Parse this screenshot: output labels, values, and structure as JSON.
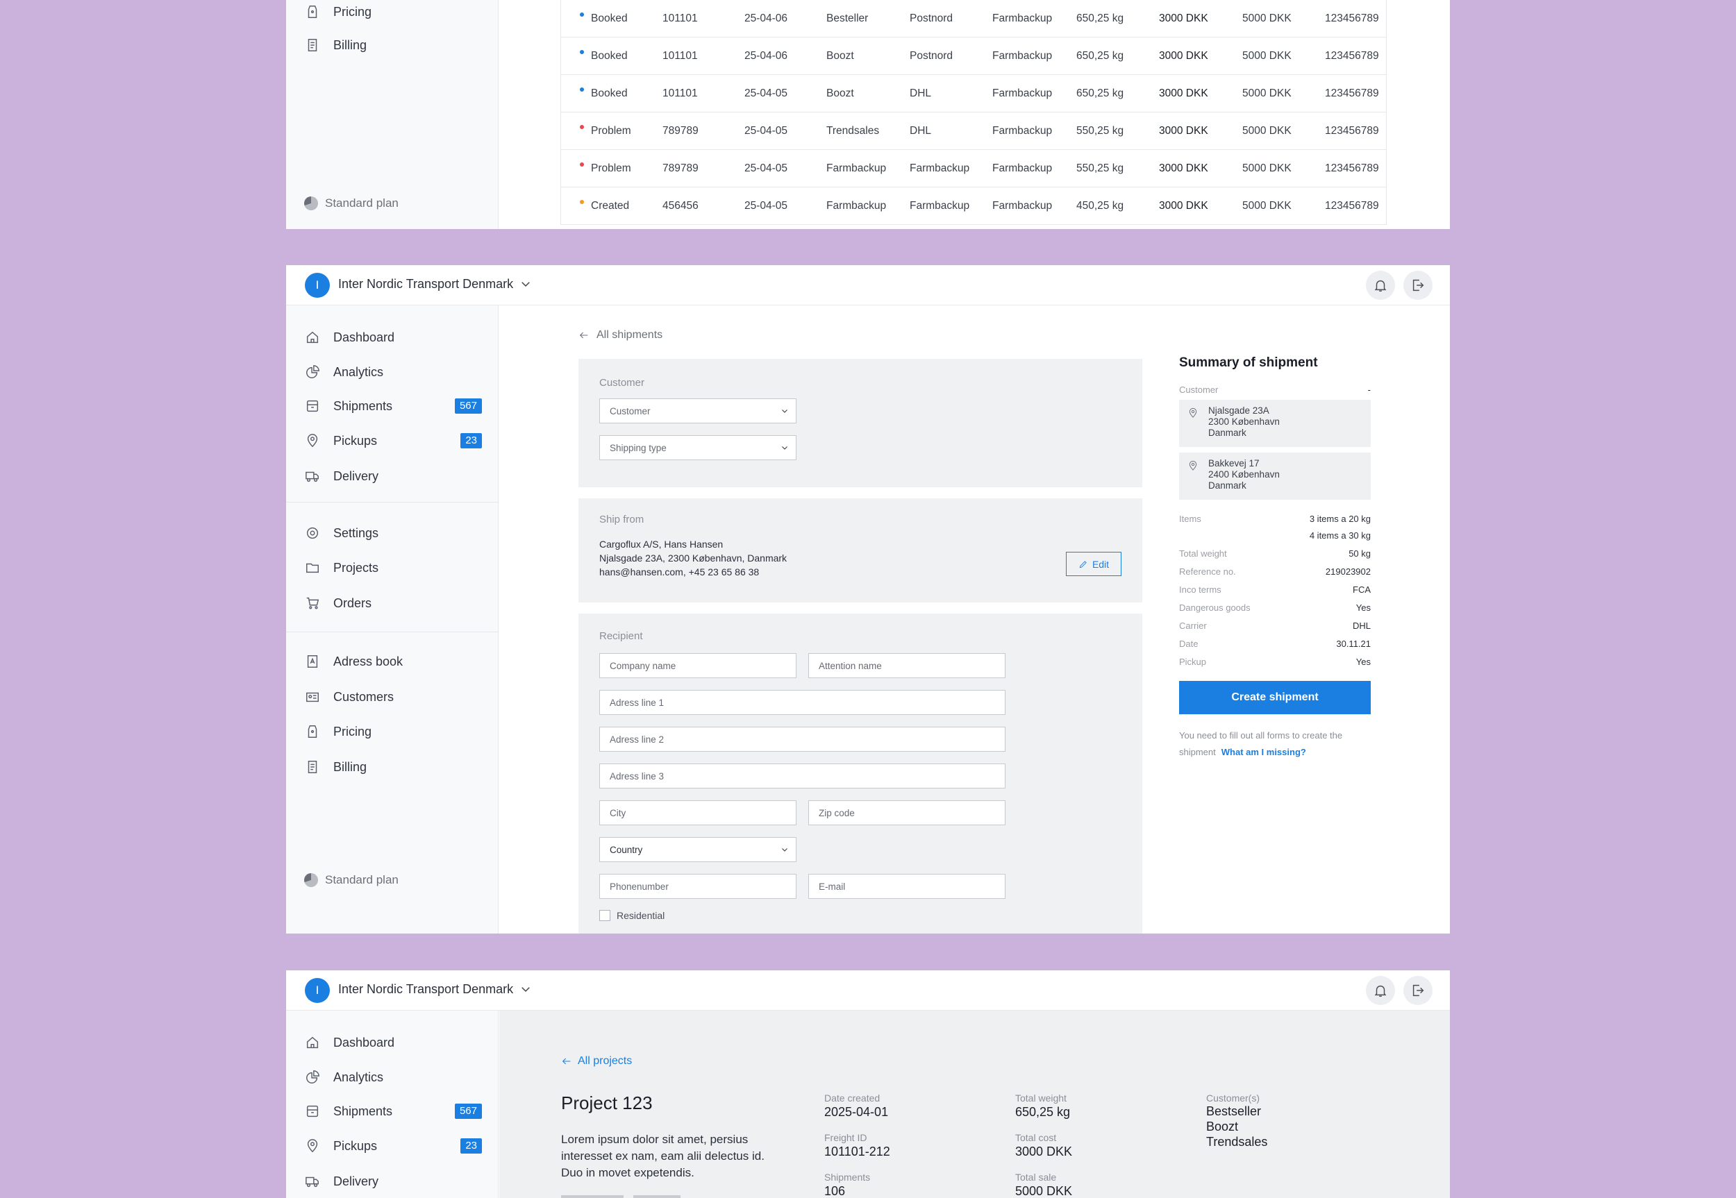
{
  "icons": {
    "dashboard": "home-icon",
    "analytics": "pie-chart-icon",
    "shipments": "package-icon",
    "pickups": "location-pin-icon",
    "delivery": "truck-icon",
    "settings": "gear-icon",
    "projects": "folder-icon",
    "orders": "cart-icon",
    "adress_book": "address-book-icon",
    "customers": "id-card-icon",
    "pricing": "price-tag-icon",
    "billing": "receipt-icon"
  },
  "colors": {
    "accent": "#1a7fe0",
    "booked": "#1a7fe0",
    "problem": "#e5484d",
    "created": "#f29b1e",
    "background": "#cbb2dd"
  },
  "org": {
    "initial": "I",
    "name": "Inter Nordic Transport Denmark"
  },
  "nav": {
    "dashboard": "Dashboard",
    "analytics": "Analytics",
    "shipments": "Shipments",
    "shipments_count": "567",
    "pickups": "Pickups",
    "pickups_count": "23",
    "delivery": "Delivery",
    "settings": "Settings",
    "projects": "Projects",
    "orders": "Orders",
    "adress_book": "Adress book",
    "customers": "Customers",
    "pricing": "Pricing",
    "billing": "Billing",
    "plan": "Standard plan"
  },
  "shipments_table": {
    "rows": [
      {
        "status": "Booked",
        "status_color": "#1a7fe0",
        "id": "101101",
        "date": "25-04-06",
        "customer": "Besteller",
        "carrier": "Postnord",
        "origin": "Farmbackup",
        "weight": "650,25 kg",
        "cost": "3000 DKK",
        "sale": "5000 DKK",
        "ref": "123456789"
      },
      {
        "status": "Booked",
        "status_color": "#1a7fe0",
        "id": "101101",
        "date": "25-04-06",
        "customer": "Boozt",
        "carrier": "Postnord",
        "origin": "Farmbackup",
        "weight": "650,25 kg",
        "cost": "3000 DKK",
        "sale": "5000 DKK",
        "ref": "123456789"
      },
      {
        "status": "Booked",
        "status_color": "#1a7fe0",
        "id": "101101",
        "date": "25-04-05",
        "customer": "Boozt",
        "carrier": "DHL",
        "origin": "Farmbackup",
        "weight": "650,25 kg",
        "cost": "3000 DKK",
        "sale": "5000 DKK",
        "ref": "123456789"
      },
      {
        "status": "Problem",
        "status_color": "#e5484d",
        "id": "789789",
        "date": "25-04-05",
        "customer": "Trendsales",
        "carrier": "DHL",
        "origin": "Farmbackup",
        "weight": "550,25 kg",
        "cost": "3000 DKK",
        "sale": "5000 DKK",
        "ref": "123456789"
      },
      {
        "status": "Problem",
        "status_color": "#e5484d",
        "id": "789789",
        "date": "25-04-05",
        "customer": "Farmbackup",
        "carrier": "Farmbackup",
        "origin": "Farmbackup",
        "weight": "550,25 kg",
        "cost": "3000 DKK",
        "sale": "5000 DKK",
        "ref": "123456789"
      },
      {
        "status": "Created",
        "status_color": "#f29b1e",
        "id": "456456",
        "date": "25-04-05",
        "customer": "Farmbackup",
        "carrier": "Farmbackup",
        "origin": "Farmbackup",
        "weight": "450,25 kg",
        "cost": "3000 DKK",
        "sale": "5000 DKK",
        "ref": "123456789"
      }
    ]
  },
  "create": {
    "back_label": "All shipments",
    "customer_section": {
      "title": "Customer",
      "customer_select": "Customer",
      "shipping_type_select": "Shipping type"
    },
    "ship_from": {
      "title": "Ship from",
      "line1": "Cargoflux A/S, Hans Hansen",
      "line2": "Njalsgade 23A, 2300 København, Danmark",
      "line3": "hans@hansen.com, +45 23 65 86 38",
      "edit_label": "Edit"
    },
    "recipient": {
      "title": "Recipient",
      "company_placeholder": "Company name",
      "attention_placeholder": "Attention name",
      "address1_placeholder": "Adress line 1",
      "address2_placeholder": "Adress line 2",
      "address3_placeholder": "Adress line 3",
      "city_placeholder": "City",
      "zip_placeholder": "Zip code",
      "country_select": "Country",
      "phone_placeholder": "Phonenumber",
      "email_placeholder": "E-mail",
      "residential_label": "Residential"
    }
  },
  "summary": {
    "title": "Summary of shipment",
    "customer_label": "Customer",
    "customer_value": "-",
    "from_address": {
      "line1": "Njalsgade 23A",
      "line2": "2300 København",
      "line3": "Danmark"
    },
    "to_address": {
      "line1": "Bakkevej 17",
      "line2": "2400 København",
      "line3": "Danmark"
    },
    "items_label": "Items",
    "items_line1": "3 items a 20 kg",
    "items_line2": "4 items a 30 kg",
    "total_weight_label": "Total weight",
    "total_weight": "50 kg",
    "reference_label": "Reference no.",
    "reference": "219023902",
    "inco_label": "Inco terms",
    "inco": "FCA",
    "dangerous_label": "Dangerous goods",
    "dangerous": "Yes",
    "carrier_label": "Carrier",
    "carrier": "DHL",
    "date_label": "Date",
    "date": "30.11.21",
    "pickup_label": "Pickup",
    "pickup": "Yes",
    "create_button": "Create shipment",
    "hint_text": "You need to fill out all forms to create the shipment",
    "hint_link": "What am I missing?"
  },
  "project": {
    "back_label": "All projects",
    "title": "Project 123",
    "description": "Lorem ipsum dolor sit amet, persius interesset ex nam, eam alii delectus id.  Duo in movet expetendis.",
    "date_created_label": "Date created",
    "date_created": "2025-04-01",
    "freight_id_label": "Freight ID",
    "freight_id": "101101-212",
    "shipments_label": "Shipments",
    "shipments": "106",
    "total_weight_label": "Total weight",
    "total_weight": "650,25 kg",
    "total_cost_label": "Total cost",
    "total_cost": "3000 DKK",
    "total_sale_label": "Total sale",
    "total_sale": "5000 DKK",
    "customers_label": "Customer(s)",
    "customers": [
      "Bestseller",
      "Boozt",
      "Trendsales"
    ]
  }
}
